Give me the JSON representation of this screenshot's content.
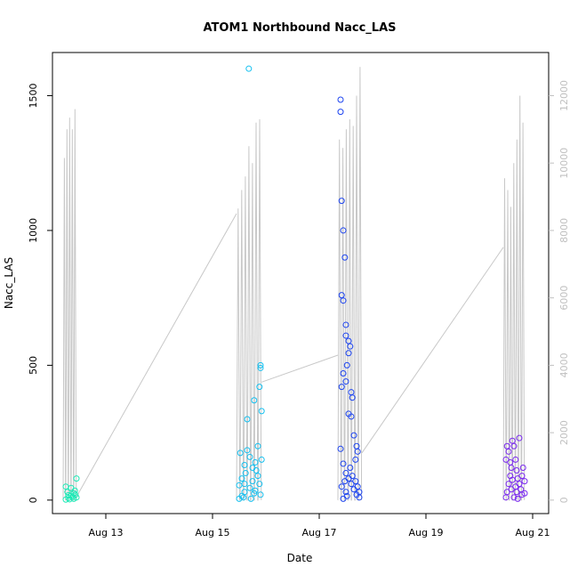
{
  "chart_data": {
    "type": "scatter",
    "title": "ATOM1 Northbound Nacc_LAS",
    "xlabel": "Date",
    "ylabel": "Nacc_LAS",
    "x_tick_labels": [
      "Aug 13",
      "Aug 15",
      "Aug 17",
      "Aug 19",
      "Aug 21"
    ],
    "x_tick_dates": [
      13,
      15,
      17,
      19,
      21
    ],
    "xlim": [
      12.0,
      21.3
    ],
    "ylim": [
      -50,
      1660
    ],
    "y_ticks": [
      0,
      500,
      1000,
      1500
    ],
    "y2_ticks": [
      0,
      2000,
      4000,
      6000,
      8000,
      10000,
      12000
    ],
    "y2lim": [
      -400,
      13280
    ],
    "colors": {
      "group1": "#1de9b6",
      "group2": "#14c0f0",
      "group3": "#1e45f0",
      "group4": "#7a28f0",
      "line": "#c8c8c8"
    },
    "scatter_groups": [
      {
        "color_key": "group1",
        "points": [
          [
            12.25,
            2
          ],
          [
            12.3,
            8
          ],
          [
            12.35,
            15
          ],
          [
            12.4,
            25
          ],
          [
            12.25,
            50
          ],
          [
            12.28,
            30
          ],
          [
            12.35,
            45
          ],
          [
            12.4,
            5
          ],
          [
            12.43,
            20
          ],
          [
            12.45,
            80
          ],
          [
            12.45,
            10
          ],
          [
            12.32,
            3
          ],
          [
            12.38,
            12
          ],
          [
            12.3,
            18
          ],
          [
            12.42,
            35
          ]
        ]
      },
      {
        "color_key": "group2",
        "points": [
          [
            15.5,
            5
          ],
          [
            15.55,
            15
          ],
          [
            15.6,
            30
          ],
          [
            15.5,
            55
          ],
          [
            15.55,
            80
          ],
          [
            15.62,
            100
          ],
          [
            15.6,
            130
          ],
          [
            15.52,
            175
          ],
          [
            15.65,
            185
          ],
          [
            15.7,
            160
          ],
          [
            15.75,
            120
          ],
          [
            15.8,
            140
          ],
          [
            15.85,
            200
          ],
          [
            15.85,
            90
          ],
          [
            15.88,
            60
          ],
          [
            15.9,
            500
          ],
          [
            15.9,
            490
          ],
          [
            15.88,
            420
          ],
          [
            15.92,
            330
          ],
          [
            15.78,
            370
          ],
          [
            15.65,
            300
          ],
          [
            15.68,
            1600
          ],
          [
            15.9,
            20
          ],
          [
            15.7,
            45
          ],
          [
            15.75,
            70
          ],
          [
            15.82,
            110
          ],
          [
            15.58,
            10
          ],
          [
            15.72,
            5
          ],
          [
            15.78,
            25
          ],
          [
            15.92,
            150
          ],
          [
            15.6,
            60
          ],
          [
            15.8,
            35
          ]
        ]
      },
      {
        "color_key": "group3",
        "points": [
          [
            17.4,
            1485
          ],
          [
            17.4,
            1440
          ],
          [
            17.42,
            1110
          ],
          [
            17.45,
            1000
          ],
          [
            17.48,
            900
          ],
          [
            17.45,
            740
          ],
          [
            17.42,
            760
          ],
          [
            17.5,
            650
          ],
          [
            17.5,
            610
          ],
          [
            17.55,
            590
          ],
          [
            17.58,
            570
          ],
          [
            17.55,
            545
          ],
          [
            17.52,
            500
          ],
          [
            17.45,
            470
          ],
          [
            17.5,
            440
          ],
          [
            17.42,
            420
          ],
          [
            17.6,
            400
          ],
          [
            17.62,
            380
          ],
          [
            17.55,
            320
          ],
          [
            17.6,
            310
          ],
          [
            17.65,
            240
          ],
          [
            17.7,
            200
          ],
          [
            17.72,
            180
          ],
          [
            17.68,
            150
          ],
          [
            17.4,
            190
          ],
          [
            17.45,
            135
          ],
          [
            17.5,
            100
          ],
          [
            17.55,
            80
          ],
          [
            17.6,
            60
          ],
          [
            17.65,
            40
          ],
          [
            17.7,
            20
          ],
          [
            17.75,
            10
          ],
          [
            17.45,
            5
          ],
          [
            17.5,
            30
          ],
          [
            17.42,
            50
          ],
          [
            17.48,
            70
          ],
          [
            17.58,
            120
          ],
          [
            17.62,
            90
          ],
          [
            17.72,
            50
          ],
          [
            17.75,
            30
          ],
          [
            17.68,
            70
          ],
          [
            17.52,
            15
          ]
        ]
      },
      {
        "color_key": "group4",
        "points": [
          [
            20.5,
            10
          ],
          [
            20.52,
            30
          ],
          [
            20.55,
            60
          ],
          [
            20.58,
            90
          ],
          [
            20.6,
            120
          ],
          [
            20.5,
            150
          ],
          [
            20.52,
            200
          ],
          [
            20.55,
            180
          ],
          [
            20.62,
            220
          ],
          [
            20.65,
            200
          ],
          [
            20.68,
            150
          ],
          [
            20.7,
            110
          ],
          [
            20.72,
            80
          ],
          [
            20.75,
            60
          ],
          [
            20.78,
            40
          ],
          [
            20.8,
            20
          ],
          [
            20.82,
            120
          ],
          [
            20.85,
            70
          ],
          [
            20.75,
            230
          ],
          [
            20.7,
            30
          ],
          [
            20.6,
            40
          ],
          [
            20.65,
            10
          ],
          [
            20.8,
            90
          ],
          [
            20.58,
            140
          ],
          [
            20.72,
            5
          ],
          [
            20.85,
            25
          ],
          [
            20.62,
            75
          ],
          [
            20.68,
            50
          ]
        ]
      }
    ],
    "line_series": {
      "axis": "right",
      "bursts": [
        {
          "start": 12.2,
          "end": 12.45,
          "peaks": [
            10150,
            11000,
            11350,
            11000,
            11600
          ]
        },
        {
          "start": 15.45,
          "end": 15.92,
          "peaks": [
            8650,
            9200,
            9600,
            10500,
            10000,
            11200,
            11300
          ]
        },
        {
          "start": 17.35,
          "end": 17.8,
          "peaks": [
            10700,
            10450,
            11000,
            11300,
            11100,
            12000,
            12850
          ]
        },
        {
          "start": 20.45,
          "end": 20.85,
          "peaks": [
            9550,
            9200,
            8700,
            10000,
            10700,
            12000,
            11200
          ]
        }
      ],
      "connectors": [
        [
          [
            12.45,
            100
          ],
          [
            15.45,
            8500
          ]
        ],
        [
          [
            15.92,
            3500
          ],
          [
            17.35,
            4300
          ]
        ],
        [
          [
            17.8,
            1400
          ],
          [
            20.45,
            7500
          ]
        ]
      ]
    }
  }
}
